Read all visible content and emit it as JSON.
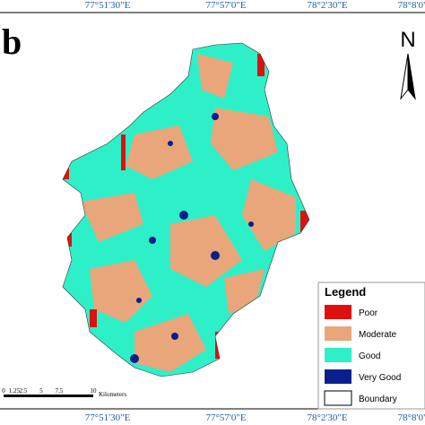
{
  "panel_label": "b",
  "coordinates": {
    "top": [
      "77°51'30\"E",
      "77°57'0\"E",
      "78°2'30\"E",
      "78°8'0\""
    ],
    "bottom": [
      "77°51'30\"E",
      "77°57'0\"E",
      "78°2'30\"E",
      "78°8'0\""
    ]
  },
  "north": "N",
  "legend": {
    "title": "Legend",
    "items": [
      {
        "label": "Poor",
        "color": "#e01010"
      },
      {
        "label": "Moderate",
        "color": "#e8a67a"
      },
      {
        "label": "Good",
        "color": "#2ef0c8"
      },
      {
        "label": "Very Good",
        "color": "#0a1e8c"
      },
      {
        "label": "Boundary",
        "color": "#ffffff"
      }
    ]
  },
  "scale_bar": {
    "ticks": [
      "0",
      "1.25",
      "2.5",
      "5",
      "7.5",
      "10"
    ],
    "unit": "Kilometers"
  }
}
